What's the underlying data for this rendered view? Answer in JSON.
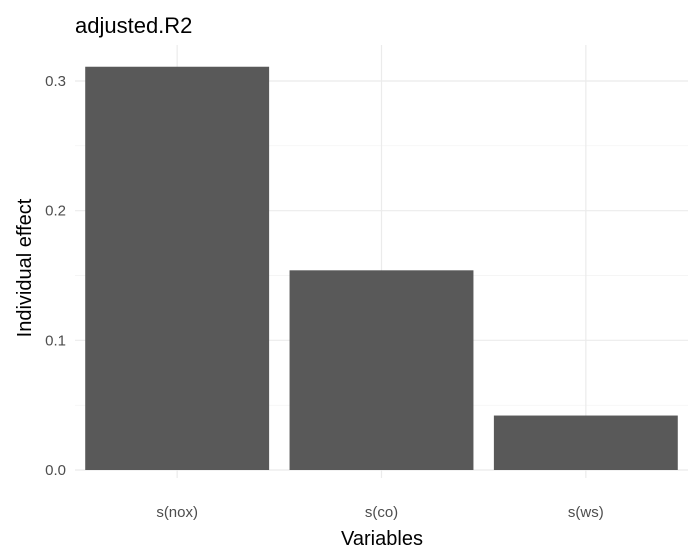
{
  "chart_data": {
    "type": "bar",
    "title": "adjusted.R2",
    "xlabel": "Variables",
    "ylabel": "Individual effect",
    "categories": [
      "s(nox)",
      "s(co)",
      "s(ws)"
    ],
    "values": [
      0.311,
      0.154,
      0.042
    ],
    "ylim": [
      0,
      0.33
    ],
    "yticks": [
      0.0,
      0.1,
      0.2,
      0.3
    ],
    "ytick_labels": [
      "0.0",
      "0.1",
      "0.2",
      "0.3"
    ],
    "grid": true,
    "bar_color": "#595959",
    "legend": "none"
  }
}
